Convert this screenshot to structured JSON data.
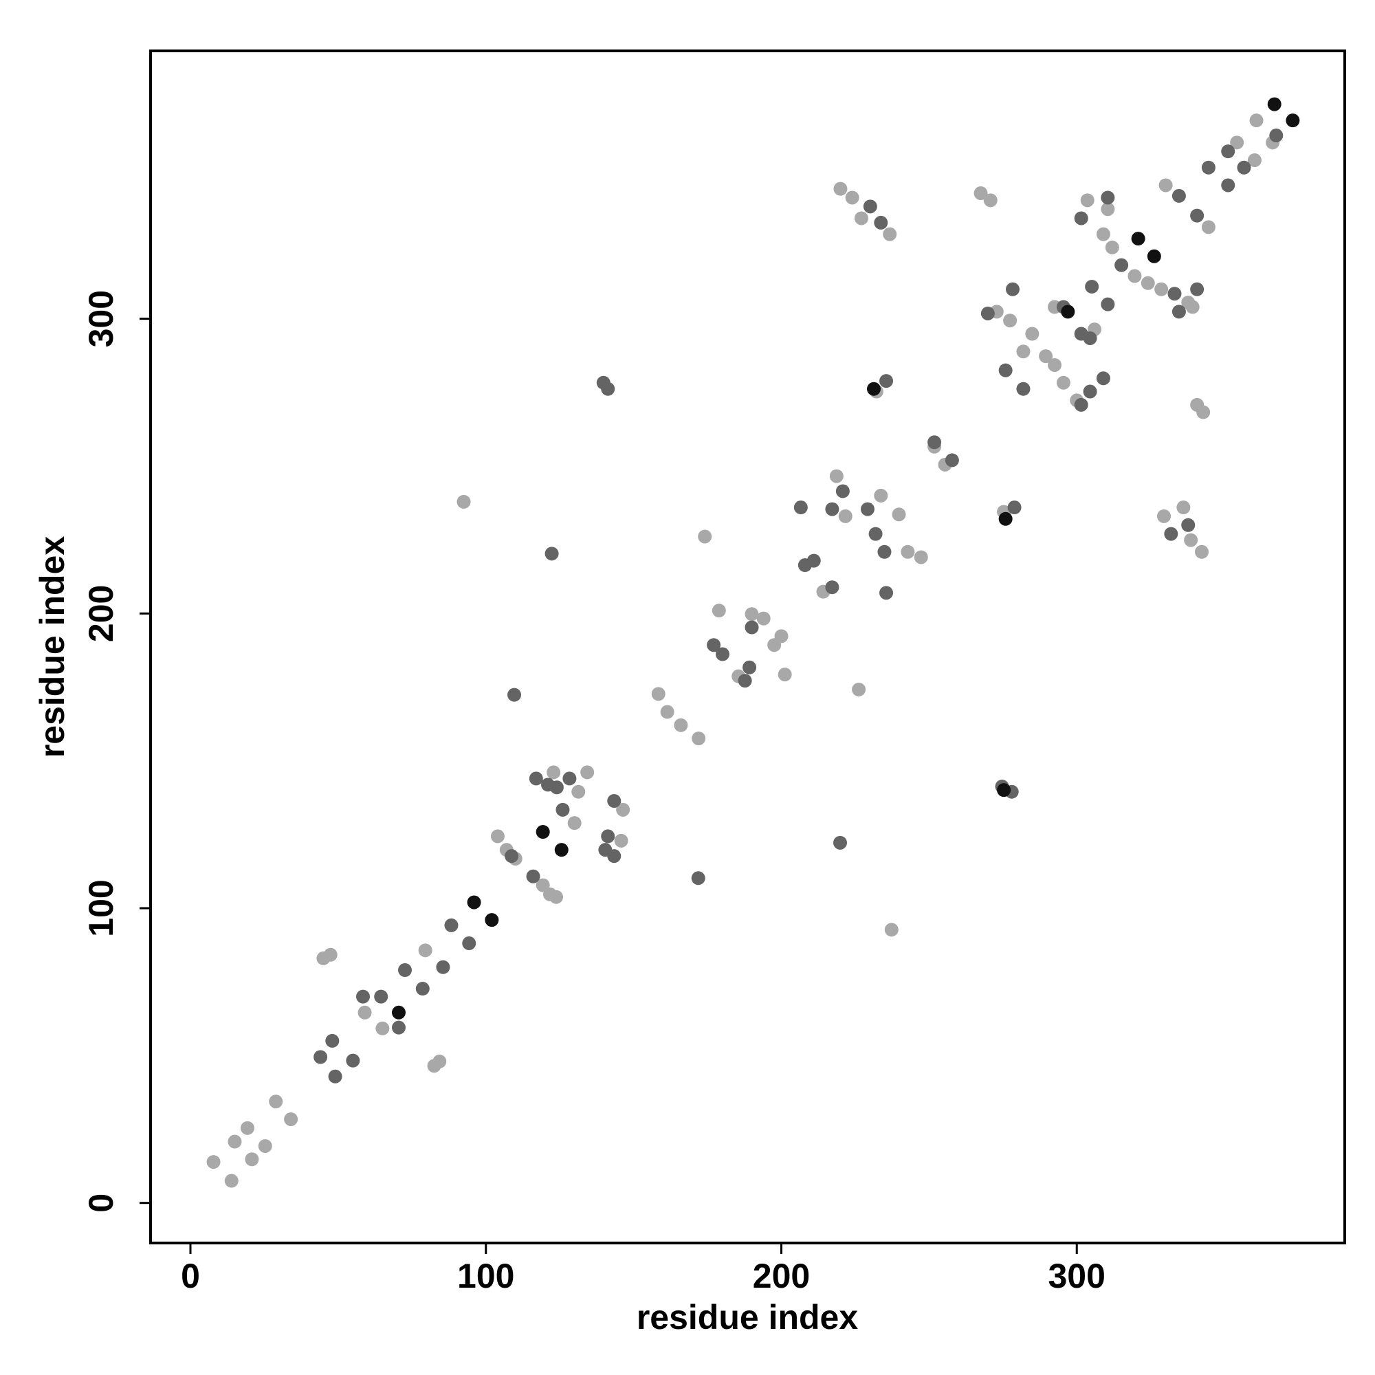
{
  "chart_data": {
    "type": "scatter",
    "xlabel": "residue index",
    "ylabel": "residue index",
    "xlim": [
      -13.5,
      390.7
    ],
    "ylim": [
      -13.6,
      390.9
    ],
    "xticks": [
      0,
      100,
      200,
      300
    ],
    "yticks": [
      0,
      100,
      200,
      300
    ],
    "series": [
      {
        "color": "#a8a8a8",
        "x": [
          7.8,
          13.9,
          15,
          19.3,
          20.8,
          25.3,
          28.9,
          34,
          45,
          47.4,
          82.5,
          84.3,
          59,
          65,
          79.5,
          92.5,
          104,
          107,
          110,
          121.7,
          123.8,
          119.3,
          122.9,
          134.3,
          131.3,
          130,
          146.4,
          145.8,
          158.4,
          161.4,
          166,
          172,
          174.1,
          178.9,
          185.5,
          190,
          194,
          200,
          197.6,
          201.2,
          214.2,
          218.7,
          221.7,
          233.7,
          239.8,
          242.8,
          247.3,
          226.2,
          237.3,
          220,
          224,
          227.1,
          236.7,
          232.2,
          251.8,
          255.4,
          267.5,
          270.8,
          275.3,
          272.9,
          277.4,
          281.9,
          284.9,
          289.5,
          292.5,
          295.5,
          300,
          292.5,
          306,
          303.6,
          310.5,
          309,
          312,
          319.6,
          324.1,
          328.6,
          337.7,
          339.2,
          336.1,
          329.5,
          338.6,
          342.3,
          340.7,
          342.8,
          330.1,
          344.6,
          354.2,
          360.2,
          360.8,
          366.3
        ],
        "values": [
          13.9,
          7.5,
          20.8,
          25.4,
          14.8,
          19.3,
          34.4,
          28.4,
          83,
          84.2,
          46.5,
          48,
          64.6,
          59.2,
          85.7,
          237.9,
          124.4,
          119.8,
          116.8,
          104.7,
          103.8,
          107.8,
          146.1,
          146.1,
          139.5,
          128.9,
          133.4,
          122.9,
          172.7,
          166.6,
          162.1,
          157.6,
          226.1,
          201,
          178.7,
          199.8,
          198.3,
          192.3,
          189.3,
          179.3,
          207.4,
          246.6,
          233,
          240,
          233.6,
          220.9,
          219.1,
          174.2,
          92.7,
          344.1,
          341.1,
          334.1,
          328.7,
          275.3,
          256.6,
          250.5,
          342.6,
          340.2,
          234.5,
          302.4,
          299.4,
          288.9,
          294.9,
          287.3,
          284.3,
          278.3,
          272.3,
          304,
          296.4,
          340.2,
          337.2,
          328.7,
          324.2,
          314.5,
          312.1,
          310,
          305.5,
          304,
          236,
          233,
          224.9,
          220.9,
          270.8,
          268.3,
          345.3,
          331.1,
          359.8,
          353.8,
          367.3,
          359.8
        ]
      },
      {
        "color": "#646464",
        "x": [
          44,
          49,
          48,
          55,
          58.4,
          64.5,
          70.5,
          72.6,
          78.6,
          85.5,
          88.3,
          94.3,
          109.6,
          122.3,
          139.8,
          141.3,
          108.7,
          116,
          117,
          121,
          124,
          128.3,
          126,
          143.4,
          141.3,
          143.4,
          140.4,
          171.9,
          177.1,
          180.1,
          189.2,
          187.7,
          190,
          208,
          211,
          217.2,
          206.6,
          217.2,
          220.8,
          229.2,
          231.9,
          234.9,
          235.5,
          219.9,
          230.1,
          233.7,
          235.5,
          251.8,
          257.8,
          274.7,
          278,
          278.9,
          269.9,
          278.3,
          275.9,
          281.9,
          301.5,
          304.5,
          309,
          295.5,
          301.5,
          304.5,
          305.1,
          310.5,
          301.5,
          310.5,
          315.1,
          333.1,
          340.7,
          334.6,
          337.7,
          331.9,
          334.6,
          340.7,
          344.6,
          351.2,
          351.2,
          356.6,
          367.5
        ],
        "values": [
          49.5,
          42.9,
          55,
          48.3,
          70,
          70,
          59.5,
          79,
          72.7,
          80,
          94.2,
          88.1,
          172.4,
          220.3,
          278.3,
          276.2,
          117.7,
          110.8,
          144,
          141.9,
          141,
          144,
          133.4,
          136.4,
          124.4,
          117.7,
          119.8,
          110.2,
          189.3,
          186.2,
          181.7,
          177.2,
          195.3,
          216.4,
          217.9,
          208.9,
          236,
          235.4,
          241.5,
          235.4,
          227,
          220.9,
          207,
          122.2,
          338.1,
          332.6,
          278.9,
          258.1,
          252,
          141.3,
          139.5,
          236,
          301.8,
          310,
          282.5,
          276.2,
          270.8,
          275.3,
          279.8,
          304,
          294.9,
          293.4,
          310.9,
          304.9,
          334.1,
          341.1,
          318.2,
          308.5,
          310,
          302.4,
          230,
          227,
          341.7,
          335,
          351.3,
          345.3,
          356.8,
          351.3,
          362.2
        ]
      },
      {
        "color": "#111111",
        "x": [
          70.5,
          96,
          102,
          119.3,
          125.6,
          231.3,
          275.3,
          275.9,
          297,
          320.8,
          326.2,
          366.9,
          373.1
        ],
        "values": [
          64.6,
          102,
          96,
          125.9,
          119.8,
          276.2,
          140.1,
          232.1,
          302.4,
          327.2,
          321.2,
          372.8,
          367.3
        ]
      }
    ]
  }
}
